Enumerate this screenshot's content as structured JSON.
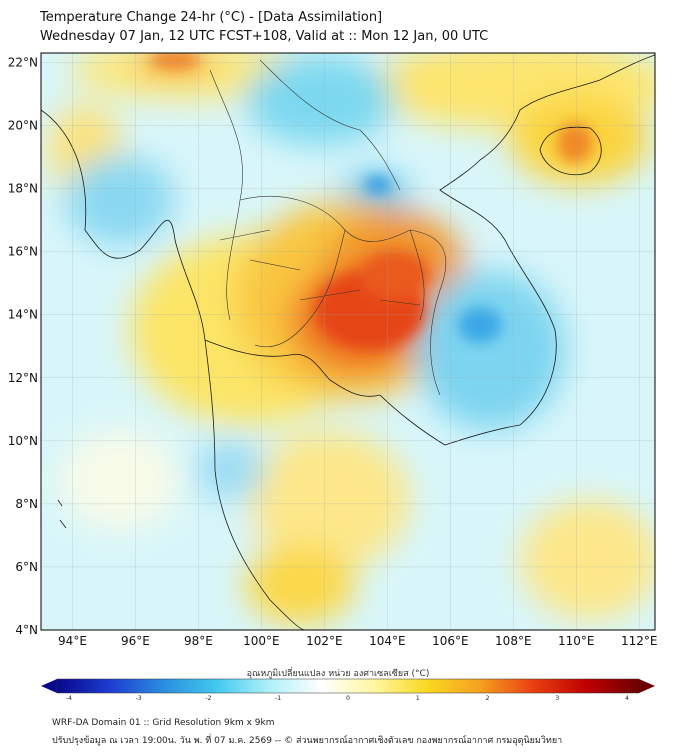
{
  "header": {
    "title": "Temperature Change 24-hr (°C) - [Data Assimilation]",
    "subtitle": "Wednesday 07 Jan, 12 UTC FCST+108, Valid at :: Mon 12 Jan, 00 UTC"
  },
  "map": {
    "lat_labels": [
      "22°N",
      "20°N",
      "18°N",
      "16°N",
      "14°N",
      "12°N",
      "10°N",
      "8°N",
      "6°N",
      "4°N"
    ],
    "lon_labels": [
      "94°E",
      "96°E",
      "98°E",
      "100°E",
      "102°E",
      "104°E",
      "106°E",
      "108°E",
      "110°E",
      "112°E"
    ],
    "lat_range": [
      4,
      22.3
    ],
    "lon_range": [
      93,
      112.5
    ]
  },
  "colorbar": {
    "label": "อุณหภูมิเปลี่ยนแปลง หน่วย องศาเซลเซียส (°C)",
    "ticks": [
      "-4",
      "-3",
      "-2",
      "-1",
      "0",
      "1",
      "2",
      "3",
      "4"
    ],
    "range": [
      -4,
      4
    ],
    "colors": [
      "#08088c",
      "#1e3cd2",
      "#2b8ce0",
      "#40c8ee",
      "#aef0f8",
      "#ffffff",
      "#fff7a0",
      "#f8d820",
      "#f5a020",
      "#e84010",
      "#c00000",
      "#6e0000"
    ]
  },
  "footer": {
    "line1": "WRF-DA Domain 01 :: Grid Resolution 9km x 9km",
    "line2": "ปรับปรุงข้อมูล ณ เวลา 19:00น. วัน พ. ที่ 07 ม.ค. 2569 -- © ส่วนพยากรณ์อากาศเชิงตัวเลข กองพยากรณ์อากาศ กรมอุตุนิยมวิทยา"
  }
}
